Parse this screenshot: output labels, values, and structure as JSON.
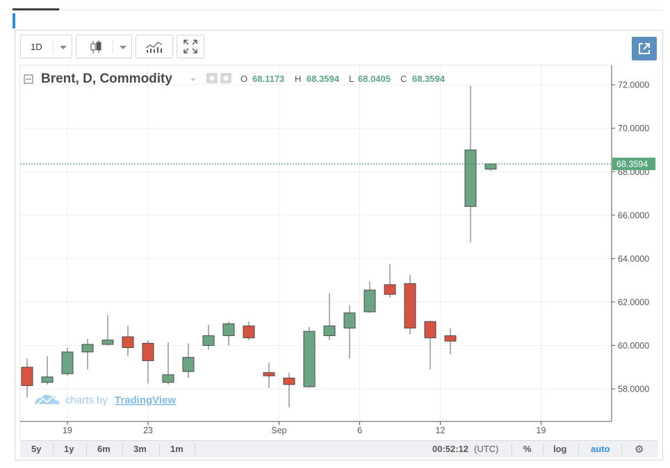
{
  "toolbar": {
    "interval_label": "1D",
    "buttons": [
      "interval",
      "chart-style",
      "indicators",
      "fullscreen"
    ]
  },
  "legend": {
    "title": "Brent, D, Commodity",
    "o_label": "O",
    "o_value": "68.1173",
    "h_label": "H",
    "h_value": "68.3594",
    "l_label": "L",
    "l_value": "68.0405",
    "c_label": "C",
    "c_value": "68.3594"
  },
  "watermark": {
    "prefix": "charts by",
    "brand": "TradingView"
  },
  "bottom_bar": {
    "ranges": [
      "5y",
      "1y",
      "6m",
      "3m",
      "1m"
    ],
    "time": "00:52:12",
    "timezone": "(UTC)",
    "percent": "%",
    "log": "log",
    "auto": "auto"
  },
  "colors": {
    "up": "#6ba583",
    "down": "#d75442",
    "price_line": "#2e8b6e",
    "accent": "#2f8fe8"
  },
  "chart_data": {
    "type": "candlestick",
    "title": "Brent, D, Commodity",
    "ylim": [
      56.5,
      72.9
    ],
    "y_ticks": [
      "58.0000",
      "60.0000",
      "62.0000",
      "64.0000",
      "66.0000",
      "68.0000",
      "70.0000",
      "72.0000"
    ],
    "y_tick_values": [
      58,
      60,
      62,
      64,
      66,
      68,
      70,
      72
    ],
    "x_ticks": [
      {
        "label": "19",
        "index": 2
      },
      {
        "label": "23",
        "index": 6
      },
      {
        "label": "Sep",
        "index": 12.5
      },
      {
        "label": "6",
        "index": 16.5
      },
      {
        "label": "12",
        "index": 20.5
      },
      {
        "label": "19",
        "index": 25.5
      }
    ],
    "last_price": "68.3594",
    "last_value": 68.3594,
    "candles": [
      {
        "o": 59.0,
        "h": 59.4,
        "l": 57.6,
        "c": 58.15
      },
      {
        "o": 58.3,
        "h": 59.5,
        "l": 58.2,
        "c": 58.55
      },
      {
        "o": 58.7,
        "h": 59.9,
        "l": 58.6,
        "c": 59.7
      },
      {
        "o": 59.7,
        "h": 60.3,
        "l": 58.9,
        "c": 60.05
      },
      {
        "o": 60.05,
        "h": 61.4,
        "l": 60.0,
        "c": 60.25
      },
      {
        "o": 60.4,
        "h": 60.9,
        "l": 59.5,
        "c": 59.9
      },
      {
        "o": 60.1,
        "h": 60.25,
        "l": 58.25,
        "c": 59.3
      },
      {
        "o": 58.3,
        "h": 60.15,
        "l": 58.2,
        "c": 58.65
      },
      {
        "o": 58.8,
        "h": 60.1,
        "l": 58.5,
        "c": 59.45
      },
      {
        "o": 60.0,
        "h": 60.95,
        "l": 59.8,
        "c": 60.45
      },
      {
        "o": 60.45,
        "h": 61.1,
        "l": 60.0,
        "c": 61.0
      },
      {
        "o": 60.9,
        "h": 61.1,
        "l": 60.25,
        "c": 60.35
      },
      {
        "o": 58.75,
        "h": 59.2,
        "l": 58.05,
        "c": 58.6
      },
      {
        "o": 58.5,
        "h": 58.75,
        "l": 57.15,
        "c": 58.2
      },
      {
        "o": 58.1,
        "h": 60.85,
        "l": 58.05,
        "c": 60.65
      },
      {
        "o": 60.45,
        "h": 62.4,
        "l": 60.25,
        "c": 60.9
      },
      {
        "o": 60.8,
        "h": 61.85,
        "l": 59.4,
        "c": 61.5
      },
      {
        "o": 61.55,
        "h": 62.95,
        "l": 61.5,
        "c": 62.55
      },
      {
        "o": 62.8,
        "h": 63.75,
        "l": 62.2,
        "c": 62.35
      },
      {
        "o": 62.85,
        "h": 63.25,
        "l": 60.5,
        "c": 60.8
      },
      {
        "o": 61.1,
        "h": 61.15,
        "l": 58.9,
        "c": 60.35
      },
      {
        "o": 60.45,
        "h": 60.8,
        "l": 59.6,
        "c": 60.2
      },
      {
        "o": 66.4,
        "h": 71.95,
        "l": 64.75,
        "c": 69.0
      },
      {
        "o": 68.1173,
        "h": 68.3594,
        "l": 68.0405,
        "c": 68.3594
      }
    ]
  }
}
